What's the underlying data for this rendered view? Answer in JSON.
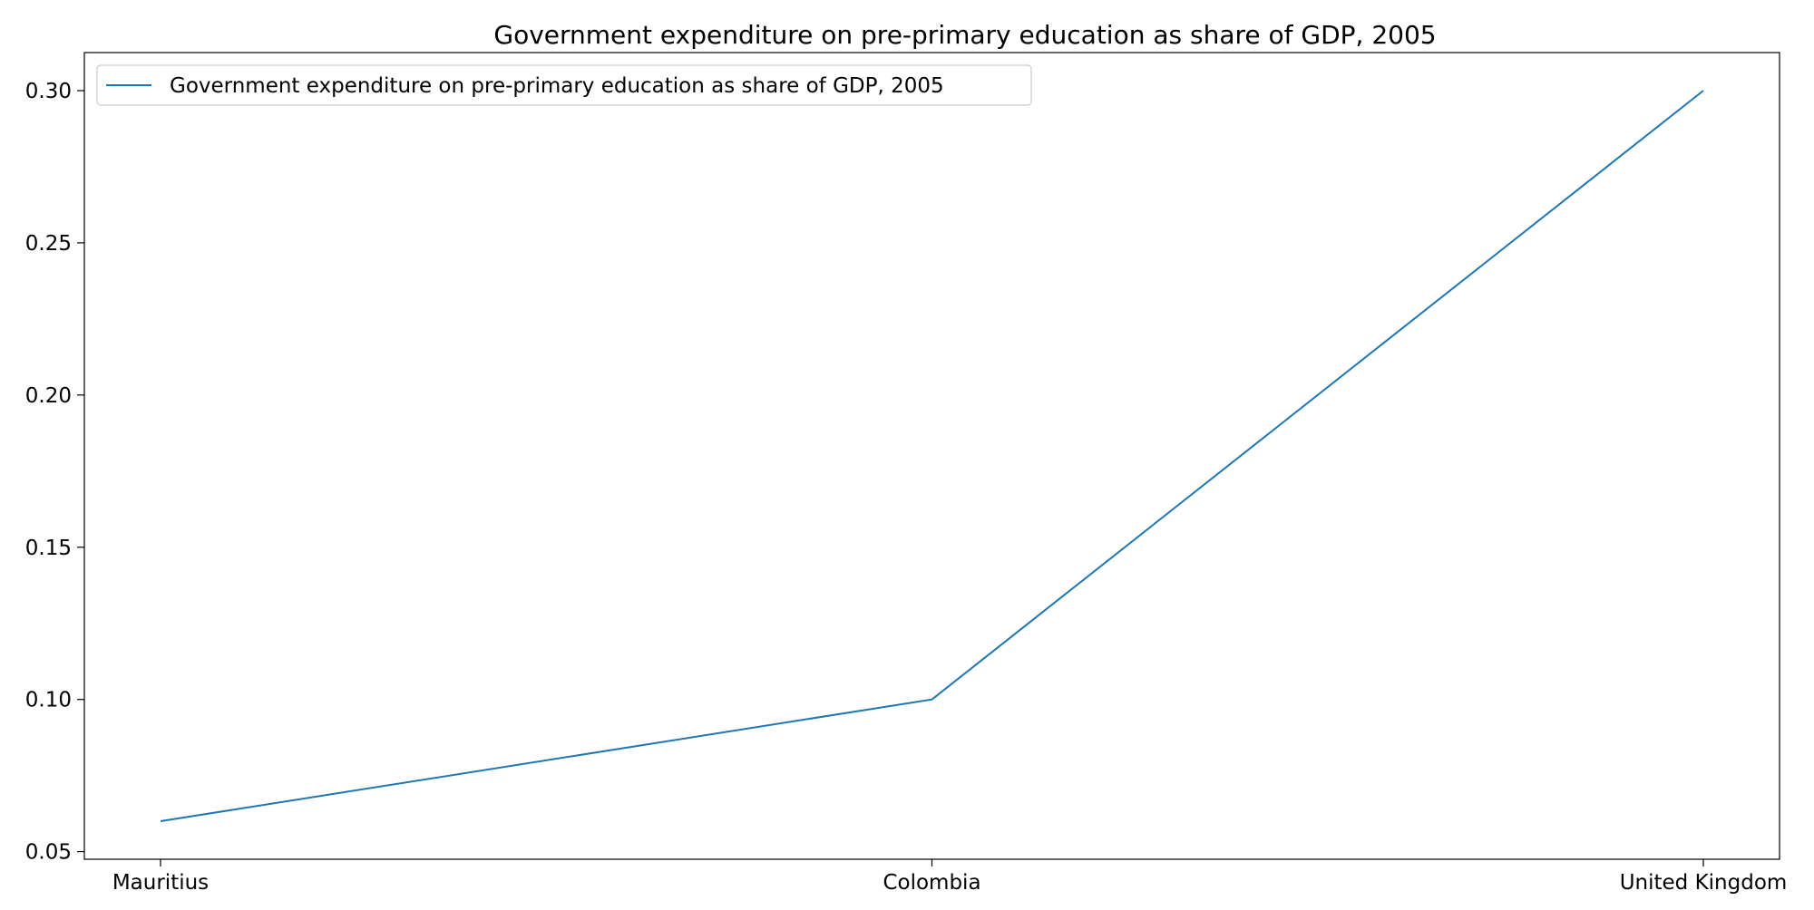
{
  "chart_data": {
    "type": "line",
    "title": "Government expenditure on pre-primary education as share of GDP, 2005",
    "xlabel": "",
    "ylabel": "",
    "categories": [
      "Mauritius",
      "Colombia",
      "United Kingdom"
    ],
    "series": [
      {
        "name": "Government expenditure on pre-primary education as share of GDP, 2005",
        "values": [
          0.06,
          0.1,
          0.3
        ],
        "color": "#1f77b4"
      }
    ],
    "ylim": [
      0.0475,
      0.3125
    ],
    "yticks": [
      0.05,
      0.1,
      0.15,
      0.2,
      0.25,
      0.3
    ],
    "ytick_labels": [
      "0.05",
      "0.10",
      "0.15",
      "0.20",
      "0.25",
      "0.30"
    ],
    "grid": false,
    "legend_position": "top-left"
  }
}
